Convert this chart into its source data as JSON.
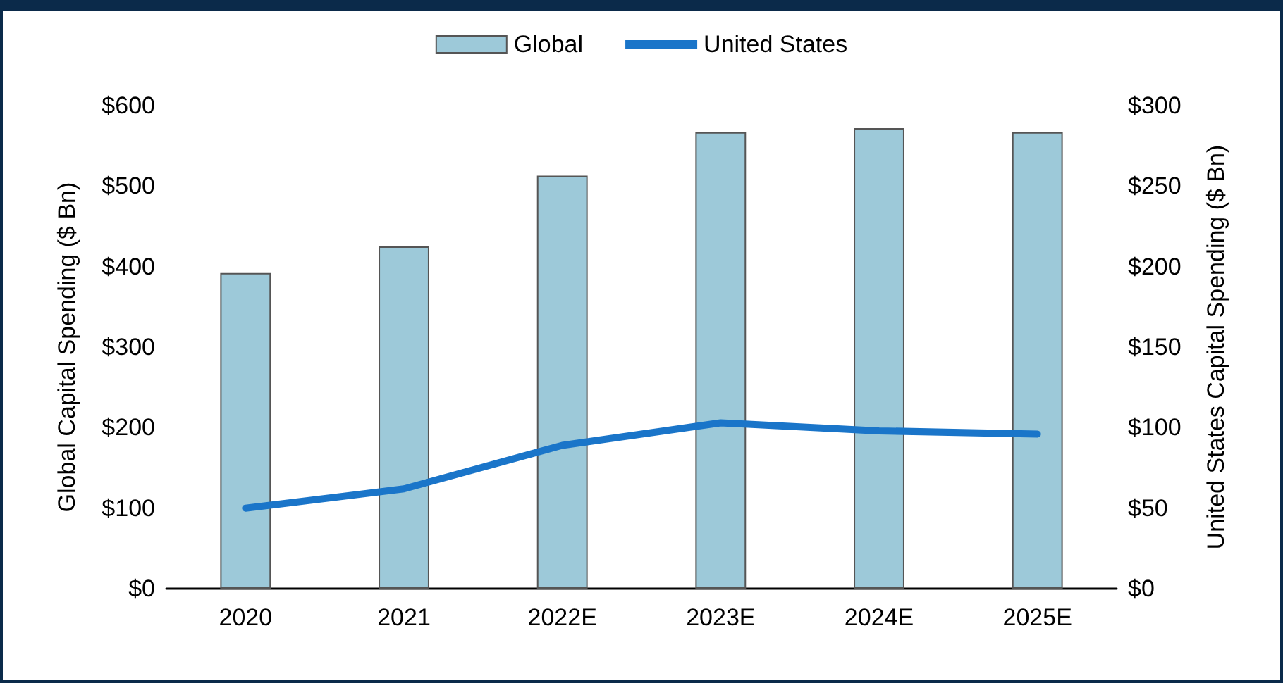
{
  "chart_data": {
    "type": "bar",
    "categories": [
      "2020",
      "2021",
      "2022E",
      "2023E",
      "2024E",
      "2025E"
    ],
    "series": [
      {
        "name": "Global",
        "color": "#9dc9d9",
        "values": [
          392,
          425,
          513,
          567,
          572,
          567
        ]
      },
      {
        "name": "United States",
        "type": "line",
        "axis": "y2",
        "color": "#1a75c9",
        "values": [
          50,
          62,
          89,
          103,
          98,
          96
        ]
      }
    ],
    "ylabel": "Global Capital Spending ($ Bn)",
    "y2label": "United States Capital Spending ($ Bn)",
    "ylim": [
      0,
      600
    ],
    "yticks": [
      {
        "value": 0,
        "label": "$0"
      },
      {
        "value": 100,
        "label": "$100"
      },
      {
        "value": 200,
        "label": "$200"
      },
      {
        "value": 300,
        "label": "$300"
      },
      {
        "value": 400,
        "label": "$400"
      },
      {
        "value": 500,
        "label": "$500"
      },
      {
        "value": 600,
        "label": "$600"
      }
    ],
    "y2lim": [
      0,
      300
    ],
    "y2ticks": [
      {
        "value": 0,
        "label": "$0"
      },
      {
        "value": 50,
        "label": "$50"
      },
      {
        "value": 100,
        "label": "$100"
      },
      {
        "value": 150,
        "label": "$150"
      },
      {
        "value": 200,
        "label": "$200"
      },
      {
        "value": 250,
        "label": "$250"
      },
      {
        "value": 300,
        "label": "$300"
      }
    ],
    "legend": "top",
    "grid": false,
    "marker": "none",
    "line_style": "solid"
  }
}
